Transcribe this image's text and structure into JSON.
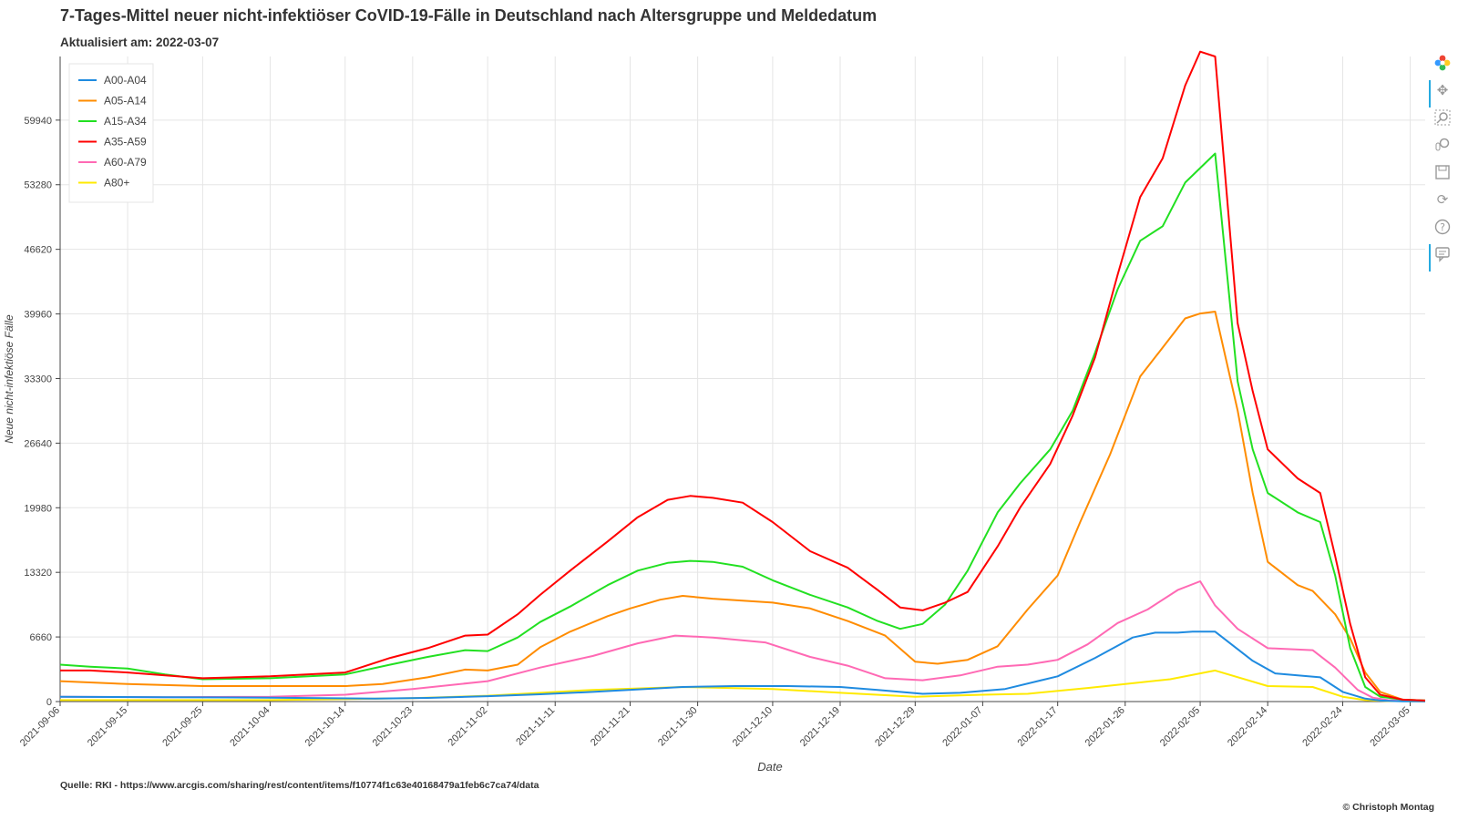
{
  "header": {
    "title": "7-Tages-Mittel neuer nicht-infektiöser CoVID-19-Fälle in Deutschland nach Altersgruppe und Meldedatum",
    "subtitle": "Aktualisiert am: 2022-03-07"
  },
  "footer": {
    "source": "Quelle: RKI - https://www.arcgis.com/sharing/rest/content/items/f10774f1c63e40168479a1feb6c7ca74/data",
    "copyright": "© Christoph Montag"
  },
  "toolbar": {
    "tools": [
      {
        "name": "bokeh-logo-icon"
      },
      {
        "name": "pan-icon"
      },
      {
        "name": "box-zoom-icon"
      },
      {
        "name": "wheel-zoom-icon"
      },
      {
        "name": "save-icon"
      },
      {
        "name": "reset-icon"
      },
      {
        "name": "help-icon"
      },
      {
        "name": "hover-icon"
      }
    ]
  },
  "chart_data": {
    "type": "line",
    "xlabel": "Date",
    "ylabel": "Neue nicht-infektiöse Fälle",
    "xlim": [
      "2021-09-06",
      "2022-03-07"
    ],
    "ylim": [
      0,
      66500
    ],
    "yticks": [
      0,
      6660,
      13320,
      19980,
      26640,
      33300,
      39960,
      46620,
      53280,
      59940
    ],
    "xticks": [
      "2021-09-06",
      "2021-09-15",
      "2021-09-25",
      "2021-10-04",
      "2021-10-14",
      "2021-10-23",
      "2021-11-02",
      "2021-11-11",
      "2021-11-21",
      "2021-11-30",
      "2021-12-10",
      "2021-12-19",
      "2021-12-29",
      "2022-01-07",
      "2022-01-17",
      "2022-01-26",
      "2022-02-05",
      "2022-02-14",
      "2022-02-24",
      "2022-03-05"
    ],
    "grid": true,
    "legend_position": "top-left",
    "series": [
      {
        "name": "A00-A04",
        "color": "#1f8be0",
        "dates": [
          "2021-09-06",
          "2021-09-20",
          "2021-10-04",
          "2021-10-18",
          "2021-10-25",
          "2021-11-02",
          "2021-11-09",
          "2021-11-16",
          "2021-11-23",
          "2021-11-28",
          "2021-12-05",
          "2021-12-12",
          "2021-12-19",
          "2021-12-24",
          "2021-12-30",
          "2022-01-04",
          "2022-01-10",
          "2022-01-17",
          "2022-01-22",
          "2022-01-27",
          "2022-01-30",
          "2022-02-02",
          "2022-02-04",
          "2022-02-07",
          "2022-02-12",
          "2022-02-15",
          "2022-02-21",
          "2022-02-24",
          "2022-02-27",
          "2022-03-01",
          "2022-03-04",
          "2022-03-07"
        ],
        "values": [
          500,
          450,
          400,
          300,
          380,
          550,
          750,
          1000,
          1300,
          1500,
          1600,
          1600,
          1500,
          1200,
          800,
          900,
          1300,
          2600,
          4500,
          6600,
          7100,
          7100,
          7200,
          7200,
          4200,
          2900,
          2500,
          1000,
          300,
          100,
          30,
          20
        ]
      },
      {
        "name": "A05-A14",
        "color": "#ff8c00",
        "dates": [
          "2021-09-06",
          "2021-09-15",
          "2021-09-25",
          "2021-10-04",
          "2021-10-14",
          "2021-10-19",
          "2021-10-25",
          "2021-10-30",
          "2021-11-02",
          "2021-11-06",
          "2021-11-09",
          "2021-11-13",
          "2021-11-18",
          "2021-11-21",
          "2021-11-25",
          "2021-11-28",
          "2021-12-02",
          "2021-12-06",
          "2021-12-10",
          "2021-12-15",
          "2021-12-20",
          "2021-12-25",
          "2021-12-29",
          "2022-01-01",
          "2022-01-05",
          "2022-01-09",
          "2022-01-13",
          "2022-01-17",
          "2022-01-20",
          "2022-01-24",
          "2022-01-28",
          "2022-02-01",
          "2022-02-03",
          "2022-02-05",
          "2022-02-07",
          "2022-02-10",
          "2022-02-12",
          "2022-02-14",
          "2022-02-18",
          "2022-02-20",
          "2022-02-23",
          "2022-02-25",
          "2022-02-27",
          "2022-03-01",
          "2022-03-04",
          "2022-03-07"
        ],
        "values": [
          2100,
          1800,
          1600,
          1600,
          1600,
          1800,
          2500,
          3300,
          3200,
          3800,
          5600,
          7200,
          8800,
          9600,
          10500,
          10900,
          10600,
          10400,
          10200,
          9600,
          8300,
          6800,
          4100,
          3900,
          4300,
          5700,
          9500,
          13000,
          18500,
          25500,
          33500,
          37500,
          39500,
          40000,
          40200,
          30000,
          21500,
          14400,
          12000,
          11400,
          9000,
          6500,
          3000,
          1000,
          200,
          100
        ]
      },
      {
        "name": "A15-A34",
        "color": "#22e021",
        "dates": [
          "2021-09-06",
          "2021-09-10",
          "2021-09-15",
          "2021-09-20",
          "2021-09-25",
          "2021-10-04",
          "2021-10-14",
          "2021-10-20",
          "2021-10-25",
          "2021-10-30",
          "2021-11-02",
          "2021-11-06",
          "2021-11-09",
          "2021-11-13",
          "2021-11-18",
          "2021-11-22",
          "2021-11-26",
          "2021-11-29",
          "2021-12-02",
          "2021-12-06",
          "2021-12-10",
          "2021-12-15",
          "2021-12-20",
          "2021-12-24",
          "2021-12-27",
          "2021-12-30",
          "2022-01-02",
          "2022-01-05",
          "2022-01-09",
          "2022-01-12",
          "2022-01-16",
          "2022-01-19",
          "2022-01-22",
          "2022-01-25",
          "2022-01-28",
          "2022-01-31",
          "2022-02-03",
          "2022-02-05",
          "2022-02-07",
          "2022-02-10",
          "2022-02-12",
          "2022-02-14",
          "2022-02-18",
          "2022-02-21",
          "2022-02-23",
          "2022-02-25",
          "2022-02-27",
          "2022-03-01",
          "2022-03-04",
          "2022-03-07"
        ],
        "values": [
          3800,
          3600,
          3400,
          2800,
          2300,
          2400,
          2800,
          3800,
          4600,
          5300,
          5200,
          6600,
          8200,
          9800,
          12000,
          13500,
          14300,
          14500,
          14400,
          13900,
          12500,
          11000,
          9700,
          8300,
          7500,
          8000,
          10000,
          13500,
          19500,
          22500,
          26000,
          30000,
          36000,
          42500,
          47500,
          49000,
          53500,
          55000,
          56500,
          33000,
          26000,
          21500,
          19500,
          18500,
          13000,
          5500,
          1500,
          500,
          200,
          100
        ]
      },
      {
        "name": "A35-A59",
        "color": "#ff0000",
        "dates": [
          "2021-09-06",
          "2021-09-10",
          "2021-09-15",
          "2021-09-20",
          "2021-09-25",
          "2021-10-04",
          "2021-10-14",
          "2021-10-20",
          "2021-10-25",
          "2021-10-30",
          "2021-11-02",
          "2021-11-06",
          "2021-11-09",
          "2021-11-13",
          "2021-11-18",
          "2021-11-22",
          "2021-11-26",
          "2021-11-29",
          "2021-12-02",
          "2021-12-06",
          "2021-12-10",
          "2021-12-15",
          "2021-12-20",
          "2021-12-24",
          "2021-12-27",
          "2021-12-30",
          "2022-01-02",
          "2022-01-05",
          "2022-01-09",
          "2022-01-12",
          "2022-01-16",
          "2022-01-19",
          "2022-01-22",
          "2022-01-25",
          "2022-01-28",
          "2022-01-31",
          "2022-02-03",
          "2022-02-05",
          "2022-02-07",
          "2022-02-10",
          "2022-02-12",
          "2022-02-14",
          "2022-02-18",
          "2022-02-21",
          "2022-02-23",
          "2022-02-25",
          "2022-02-27",
          "2022-03-01",
          "2022-03-04",
          "2022-03-07"
        ],
        "values": [
          3200,
          3200,
          3000,
          2700,
          2400,
          2600,
          3000,
          4500,
          5500,
          6800,
          6900,
          9000,
          11000,
          13500,
          16500,
          19000,
          20800,
          21200,
          21000,
          20500,
          18500,
          15500,
          13800,
          11500,
          9700,
          9400,
          10200,
          11300,
          16000,
          20000,
          24500,
          29500,
          35500,
          44000,
          52000,
          56000,
          63500,
          67000,
          66500,
          39000,
          32000,
          26000,
          23000,
          21500,
          15000,
          8000,
          2500,
          700,
          200,
          100
        ]
      },
      {
        "name": "A60-A79",
        "color": "#ff69b4",
        "dates": [
          "2021-09-06",
          "2021-09-20",
          "2021-10-04",
          "2021-10-14",
          "2021-10-23",
          "2021-11-02",
          "2021-11-09",
          "2021-11-16",
          "2021-11-22",
          "2021-11-27",
          "2021-12-02",
          "2021-12-09",
          "2021-12-15",
          "2021-12-20",
          "2021-12-25",
          "2021-12-30",
          "2022-01-04",
          "2022-01-09",
          "2022-01-13",
          "2022-01-17",
          "2022-01-21",
          "2022-01-25",
          "2022-01-29",
          "2022-02-02",
          "2022-02-05",
          "2022-02-07",
          "2022-02-10",
          "2022-02-14",
          "2022-02-20",
          "2022-02-23",
          "2022-02-26",
          "2022-02-28",
          "2022-03-02",
          "2022-03-05",
          "2022-03-07"
        ],
        "values": [
          500,
          450,
          500,
          700,
          1300,
          2100,
          3500,
          4700,
          6000,
          6800,
          6600,
          6100,
          4600,
          3700,
          2400,
          2200,
          2700,
          3600,
          3800,
          4300,
          5900,
          8100,
          9500,
          11500,
          12400,
          9900,
          7500,
          5500,
          5300,
          3500,
          1200,
          400,
          150,
          60,
          30
        ]
      },
      {
        "name": "A80+",
        "color": "#ffea00",
        "dates": [
          "2021-09-06",
          "2021-10-04",
          "2021-10-23",
          "2021-11-02",
          "2021-11-16",
          "2021-11-28",
          "2021-12-10",
          "2021-12-19",
          "2021-12-29",
          "2022-01-07",
          "2022-01-13",
          "2022-01-21",
          "2022-01-26",
          "2022-02-01",
          "2022-02-07",
          "2022-02-14",
          "2022-02-20",
          "2022-02-24",
          "2022-02-27",
          "2022-03-02",
          "2022-03-07"
        ],
        "values": [
          150,
          150,
          350,
          600,
          1200,
          1500,
          1300,
          900,
          500,
          700,
          800,
          1400,
          1800,
          2300,
          3200,
          1600,
          1500,
          500,
          150,
          60,
          20
        ]
      }
    ]
  }
}
